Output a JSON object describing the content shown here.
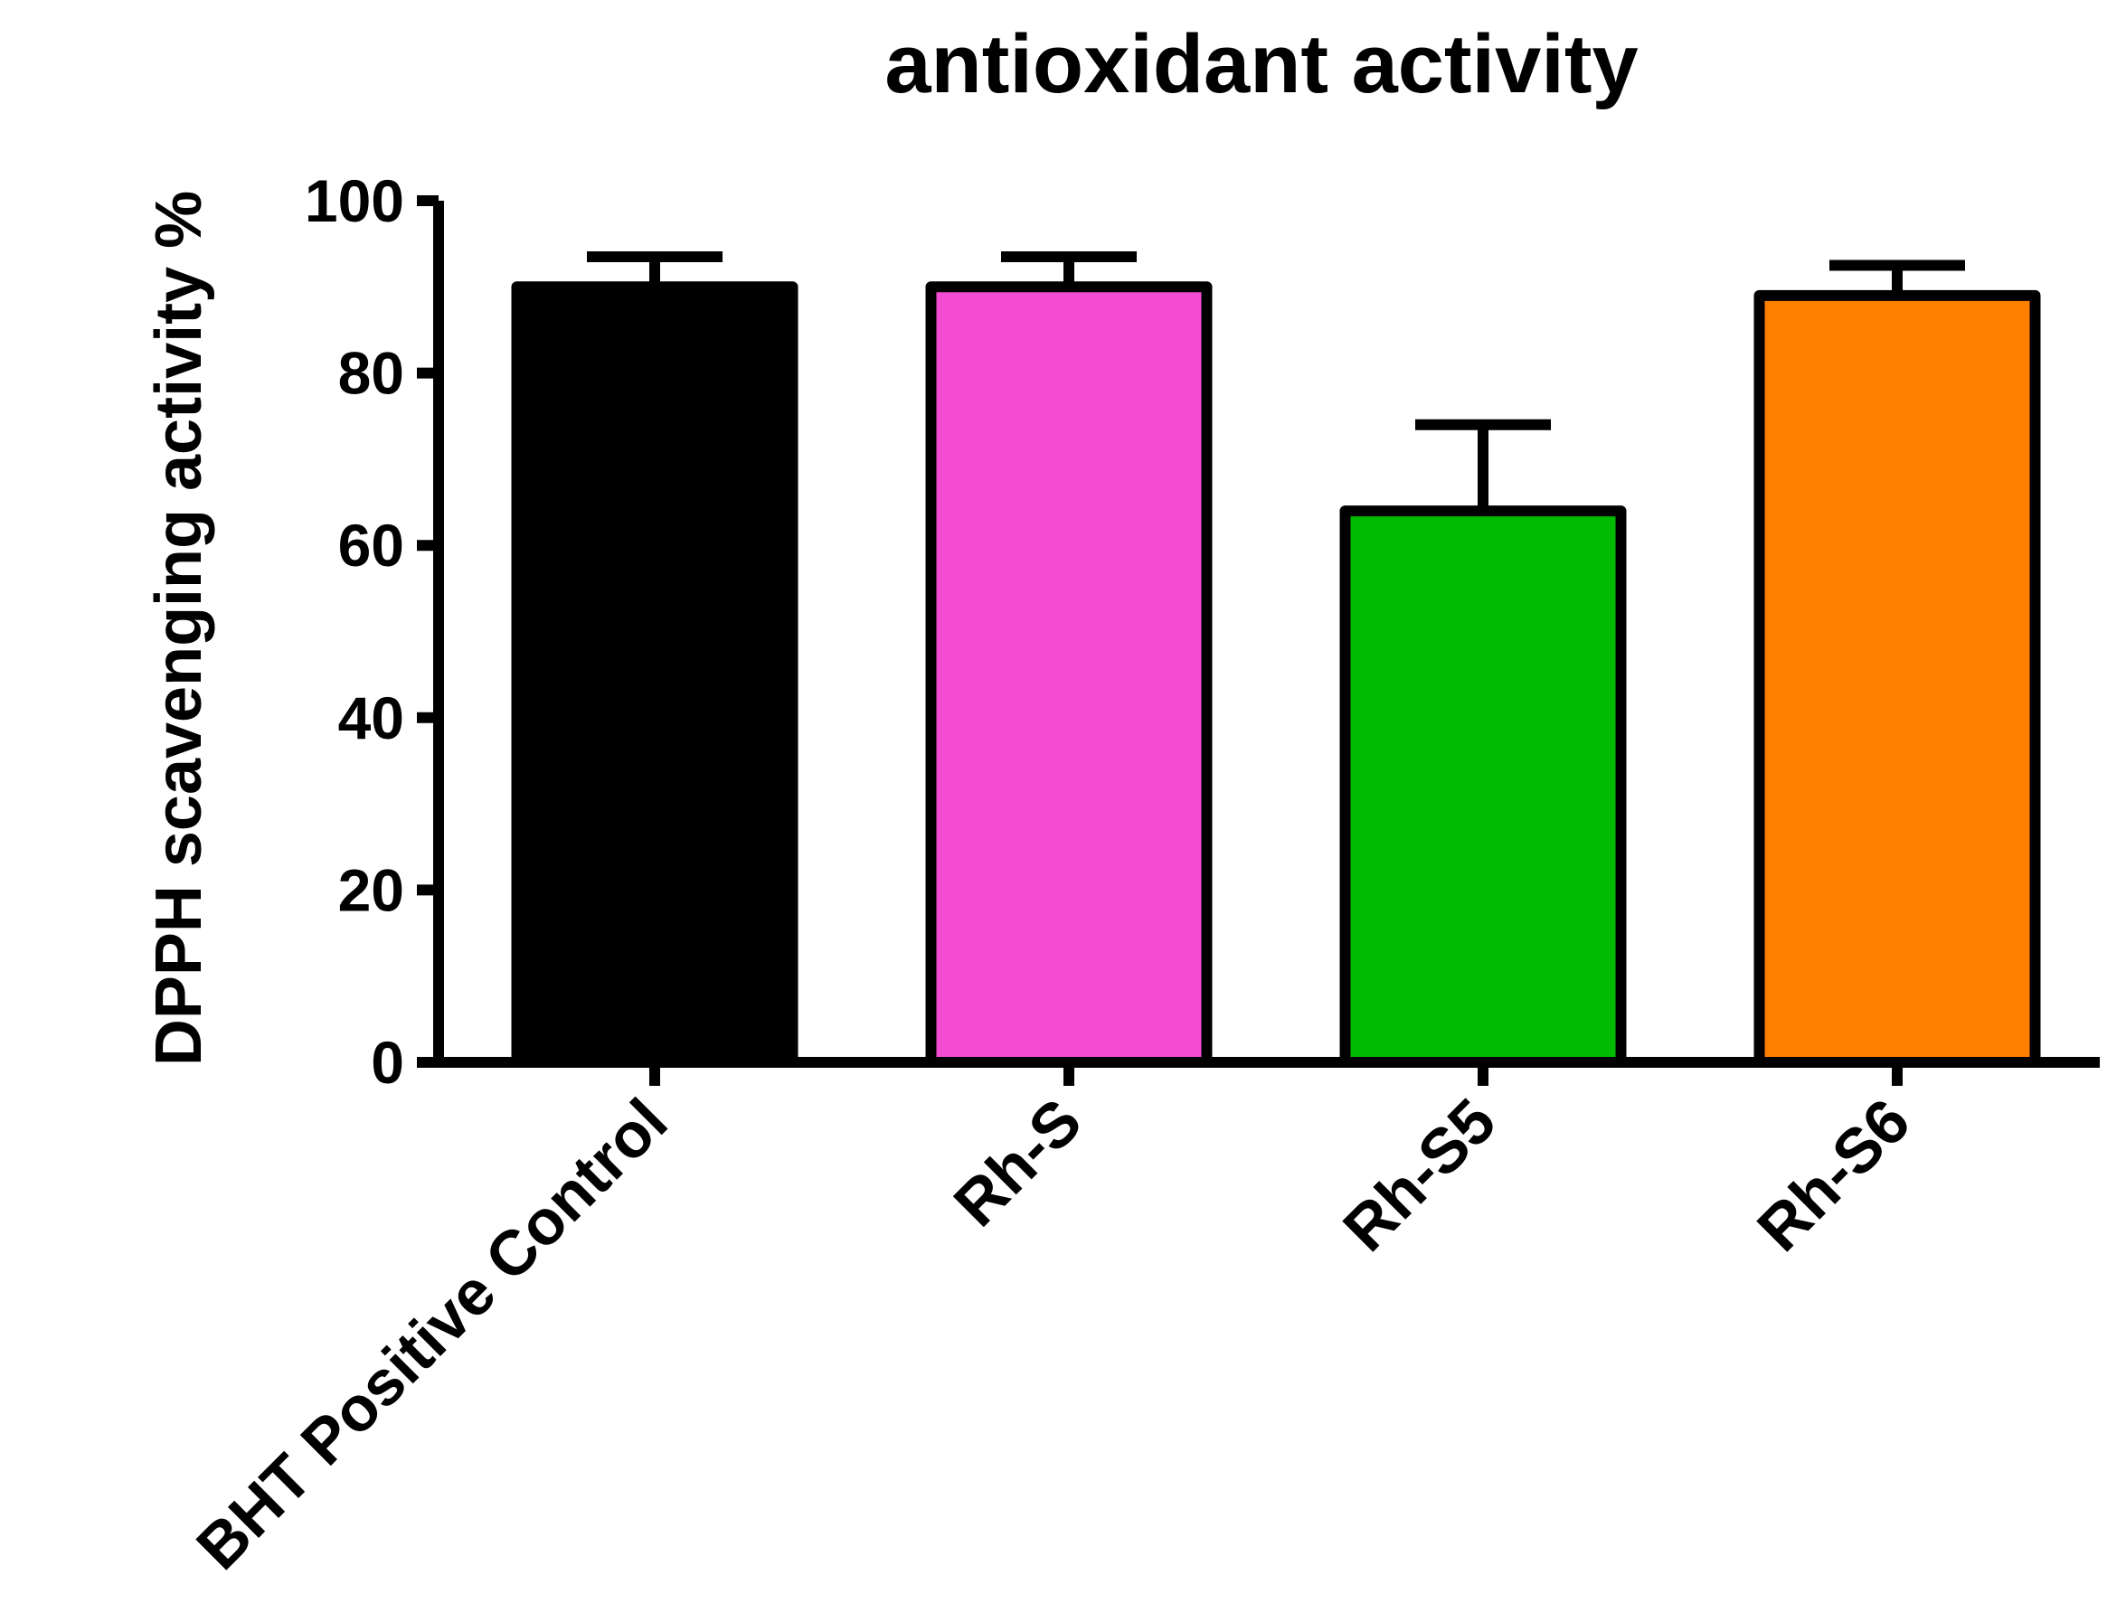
{
  "chart_data": {
    "type": "bar",
    "title": "antioxidant activity",
    "xlabel": "",
    "ylabel": "DPPH scavenging activity %",
    "ylim": [
      0,
      100
    ],
    "yticks": [
      0,
      20,
      40,
      60,
      80,
      100
    ],
    "ytick_labels": [
      "0",
      "20",
      "40",
      "60",
      "80",
      "100"
    ],
    "categories": [
      "BHT Positive Control",
      "Rh-S",
      "Rh-S5",
      "Rh-S6"
    ],
    "values": [
      90,
      90,
      64,
      89
    ],
    "error_upper": [
      3.5,
      3.5,
      10,
      3.5
    ],
    "colors": [
      "#000000",
      "#f44bd3",
      "#00bb00",
      "#ff7f00"
    ],
    "grid": false,
    "legend": "none"
  }
}
